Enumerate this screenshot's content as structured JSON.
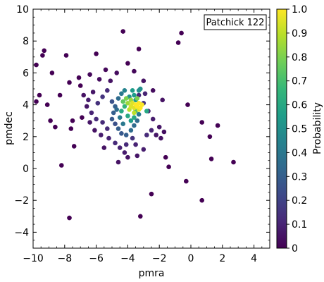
{
  "chart_data": {
    "type": "scatter",
    "annotation": "Patchick 122",
    "xlabel": "pmra",
    "ylabel": "pmdec",
    "xlim": [
      -10,
      5
    ],
    "ylim": [
      -5,
      10
    ],
    "xticks": [
      -10,
      -8,
      -6,
      -4,
      -2,
      0,
      2,
      4
    ],
    "yticks": [
      -4,
      -2,
      0,
      2,
      4,
      6,
      8,
      10
    ],
    "grid": false,
    "colorbar": {
      "label": "Probability",
      "range": [
        0,
        1
      ],
      "ticks": [
        "0",
        "0.1",
        "0.2",
        "0.3",
        "0.4",
        "0.5",
        "0.6",
        "0.7",
        "0.8",
        "0.9",
        "1.0"
      ],
      "colormap": [
        "#440154",
        "#482878",
        "#3e4989",
        "#31688e",
        "#26828e",
        "#1f9e89",
        "#35b779",
        "#6ece58",
        "#b5de2b",
        "#fde725"
      ]
    },
    "points": [
      {
        "x": -9.4,
        "y": 7.1,
        "p": 0.0
      },
      {
        "x": -9.3,
        "y": 7.4,
        "p": 0.0
      },
      {
        "x": -9.8,
        "y": 6.5,
        "p": 0.0
      },
      {
        "x": -8.8,
        "y": 6.0,
        "p": 0.0
      },
      {
        "x": -7.9,
        "y": 7.1,
        "p": 0.0
      },
      {
        "x": -6.0,
        "y": 7.2,
        "p": 0.0
      },
      {
        "x": -4.3,
        "y": 8.6,
        "p": 0.0
      },
      {
        "x": -3.3,
        "y": 7.5,
        "p": 0.0
      },
      {
        "x": -0.6,
        "y": 8.5,
        "p": 0.0
      },
      {
        "x": -0.8,
        "y": 7.9,
        "p": 0.0
      },
      {
        "x": -9.6,
        "y": 4.6,
        "p": 0.0
      },
      {
        "x": -9.8,
        "y": 4.2,
        "p": 0.0
      },
      {
        "x": -9.1,
        "y": 4.0,
        "p": 0.0
      },
      {
        "x": -8.3,
        "y": 4.6,
        "p": 0.0
      },
      {
        "x": -7.7,
        "y": 5.4,
        "p": 0.0
      },
      {
        "x": -7.1,
        "y": 5.7,
        "p": 0.0
      },
      {
        "x": -7.0,
        "y": 5.2,
        "p": 0.0
      },
      {
        "x": -7.5,
        "y": 3.0,
        "p": 0.0
      },
      {
        "x": -8.9,
        "y": 3.0,
        "p": 0.0
      },
      {
        "x": -8.6,
        "y": 2.6,
        "p": 0.0
      },
      {
        "x": -7.6,
        "y": 2.5,
        "p": 0.0
      },
      {
        "x": -6.9,
        "y": 3.2,
        "p": 0.0
      },
      {
        "x": -7.4,
        "y": 1.4,
        "p": 0.0
      },
      {
        "x": -8.2,
        "y": 0.2,
        "p": 0.0
      },
      {
        "x": -7.7,
        "y": -3.1,
        "p": 0.0
      },
      {
        "x": -6.4,
        "y": 5.9,
        "p": 0.02
      },
      {
        "x": -5.4,
        "y": 6.2,
        "p": 0.02
      },
      {
        "x": -5.8,
        "y": 5.6,
        "p": 0.03
      },
      {
        "x": -5.1,
        "y": 5.5,
        "p": 0.05
      },
      {
        "x": -4.7,
        "y": 6.0,
        "p": 0.03
      },
      {
        "x": -4.0,
        "y": 6.6,
        "p": 0.0
      },
      {
        "x": -3.6,
        "y": 6.1,
        "p": 0.02
      },
      {
        "x": -3.0,
        "y": 5.5,
        "p": 0.05
      },
      {
        "x": -2.4,
        "y": 4.9,
        "p": 0.03
      },
      {
        "x": -1.8,
        "y": 4.3,
        "p": 0.05
      },
      {
        "x": -0.2,
        "y": 4.0,
        "p": 0.0
      },
      {
        "x": -6.8,
        "y": 4.6,
        "p": 0.05
      },
      {
        "x": -6.5,
        "y": 4.3,
        "p": 0.08
      },
      {
        "x": -6.2,
        "y": 4.8,
        "p": 0.06
      },
      {
        "x": -6.6,
        "y": 3.9,
        "p": 0.06
      },
      {
        "x": -6.3,
        "y": 3.5,
        "p": 0.1
      },
      {
        "x": -6.0,
        "y": 3.1,
        "p": 0.12
      },
      {
        "x": -5.6,
        "y": 4.5,
        "p": 0.15
      },
      {
        "x": -5.3,
        "y": 4.9,
        "p": 0.12
      },
      {
        "x": -5.9,
        "y": 4.1,
        "p": 0.14
      },
      {
        "x": -5.6,
        "y": 2.9,
        "p": 0.12
      },
      {
        "x": -5.3,
        "y": 2.5,
        "p": 0.12
      },
      {
        "x": -5.7,
        "y": 2.1,
        "p": 0.08
      },
      {
        "x": -6.1,
        "y": 2.4,
        "p": 0.05
      },
      {
        "x": -6.4,
        "y": 2.9,
        "p": 0.06
      },
      {
        "x": -5.5,
        "y": 1.3,
        "p": 0.05
      },
      {
        "x": -5.2,
        "y": 1.9,
        "p": 0.1
      },
      {
        "x": -4.8,
        "y": 1.6,
        "p": 0.12
      },
      {
        "x": -4.5,
        "y": 1.3,
        "p": 0.1
      },
      {
        "x": -4.1,
        "y": 1.5,
        "p": 0.12
      },
      {
        "x": -3.7,
        "y": 1.9,
        "p": 0.15
      },
      {
        "x": -3.5,
        "y": 1.5,
        "p": 0.1
      },
      {
        "x": -3.0,
        "y": 1.2,
        "p": 0.08
      },
      {
        "x": -2.8,
        "y": 2.1,
        "p": 0.12
      },
      {
        "x": -2.5,
        "y": 2.4,
        "p": 0.1
      },
      {
        "x": -2.2,
        "y": 2.1,
        "p": 0.06
      },
      {
        "x": -2.0,
        "y": 2.6,
        "p": 0.06
      },
      {
        "x": -2.4,
        "y": 3.1,
        "p": 0.08
      },
      {
        "x": -2.7,
        "y": 3.6,
        "p": 0.1
      },
      {
        "x": -3.0,
        "y": 4.1,
        "p": 0.15
      },
      {
        "x": -3.3,
        "y": 4.6,
        "p": 0.12
      },
      {
        "x": -2.9,
        "y": 4.7,
        "p": 0.1
      },
      {
        "x": -4.2,
        "y": 1.0,
        "p": 0.08
      },
      {
        "x": -4.0,
        "y": 0.7,
        "p": 0.05
      },
      {
        "x": -3.4,
        "y": 0.8,
        "p": 0.06
      },
      {
        "x": -4.6,
        "y": 0.4,
        "p": 0.05
      },
      {
        "x": -1.6,
        "y": 0.7,
        "p": 0.0
      },
      {
        "x": -1.4,
        "y": 0.1,
        "p": 0.0
      },
      {
        "x": -2.5,
        "y": -1.6,
        "p": 0.0
      },
      {
        "x": -3.2,
        "y": -3.0,
        "p": 0.0
      },
      {
        "x": -0.3,
        "y": -0.8,
        "p": 0.0
      },
      {
        "x": 0.7,
        "y": 2.9,
        "p": 0.0
      },
      {
        "x": 1.7,
        "y": 2.7,
        "p": 0.0
      },
      {
        "x": 1.2,
        "y": 2.0,
        "p": 0.0
      },
      {
        "x": 1.3,
        "y": 0.6,
        "p": 0.0
      },
      {
        "x": 2.7,
        "y": 0.4,
        "p": 0.0
      },
      {
        "x": 0.7,
        "y": -2.0,
        "p": 0.0
      },
      {
        "x": -1.9,
        "y": 1.9,
        "p": 0.05
      },
      {
        "x": -1.7,
        "y": 2.3,
        "p": 0.04
      },
      {
        "x": -5.0,
        "y": 4.2,
        "p": 0.25
      },
      {
        "x": -4.8,
        "y": 3.9,
        "p": 0.3
      },
      {
        "x": -4.9,
        "y": 3.5,
        "p": 0.3
      },
      {
        "x": -5.0,
        "y": 3.1,
        "p": 0.28
      },
      {
        "x": -4.8,
        "y": 2.8,
        "p": 0.25
      },
      {
        "x": -4.6,
        "y": 2.5,
        "p": 0.3
      },
      {
        "x": -4.4,
        "y": 2.2,
        "p": 0.28
      },
      {
        "x": -4.1,
        "y": 2.1,
        "p": 0.3
      },
      {
        "x": -3.8,
        "y": 2.4,
        "p": 0.35
      },
      {
        "x": -3.6,
        "y": 2.7,
        "p": 0.35
      },
      {
        "x": -3.4,
        "y": 3.0,
        "p": 0.35
      },
      {
        "x": -3.3,
        "y": 3.4,
        "p": 0.4
      },
      {
        "x": -4.6,
        "y": 4.4,
        "p": 0.35
      },
      {
        "x": -4.4,
        "y": 4.7,
        "p": 0.4
      },
      {
        "x": -4.2,
        "y": 4.9,
        "p": 0.45
      },
      {
        "x": -4.5,
        "y": 3.2,
        "p": 0.4
      },
      {
        "x": -4.3,
        "y": 2.8,
        "p": 0.4
      },
      {
        "x": -4.7,
        "y": 3.7,
        "p": 0.35
      },
      {
        "x": -3.9,
        "y": 4.5,
        "p": 0.5
      },
      {
        "x": -3.6,
        "y": 4.6,
        "p": 0.55
      },
      {
        "x": -3.5,
        "y": 4.3,
        "p": 0.55
      },
      {
        "x": -3.3,
        "y": 4.9,
        "p": 0.5
      },
      {
        "x": -3.7,
        "y": 4.9,
        "p": 0.55
      },
      {
        "x": -3.2,
        "y": 5.0,
        "p": 0.5
      },
      {
        "x": -4.4,
        "y": 3.6,
        "p": 0.6
      },
      {
        "x": -4.2,
        "y": 3.9,
        "p": 0.65
      },
      {
        "x": -4.0,
        "y": 3.3,
        "p": 0.6
      },
      {
        "x": -3.8,
        "y": 3.0,
        "p": 0.55
      },
      {
        "x": -3.6,
        "y": 3.2,
        "p": 0.6
      },
      {
        "x": -3.5,
        "y": 3.6,
        "p": 0.7
      },
      {
        "x": -2.8,
        "y": 3.6,
        "p": 0.6
      },
      {
        "x": -4.3,
        "y": 4.2,
        "p": 0.75
      },
      {
        "x": -4.1,
        "y": 4.4,
        "p": 0.8
      },
      {
        "x": -3.9,
        "y": 3.7,
        "p": 0.9
      },
      {
        "x": -3.8,
        "y": 3.9,
        "p": 0.95
      },
      {
        "x": -3.7,
        "y": 4.1,
        "p": 0.95
      },
      {
        "x": -3.6,
        "y": 3.8,
        "p": 0.95
      },
      {
        "x": -3.5,
        "y": 4.0,
        "p": 1.0
      },
      {
        "x": -3.4,
        "y": 3.9,
        "p": 1.0
      },
      {
        "x": -3.3,
        "y": 4.1,
        "p": 1.0
      },
      {
        "x": -3.2,
        "y": 3.8,
        "p": 1.0
      },
      {
        "x": -3.6,
        "y": 3.5,
        "p": 0.9
      },
      {
        "x": -3.3,
        "y": 3.7,
        "p": 0.95
      },
      {
        "x": -3.1,
        "y": 4.0,
        "p": 1.0
      },
      {
        "x": -4.0,
        "y": 4.1,
        "p": 0.85
      },
      {
        "x": -3.8,
        "y": 4.3,
        "p": 0.85
      },
      {
        "x": -3.4,
        "y": 4.4,
        "p": 0.8
      }
    ]
  }
}
